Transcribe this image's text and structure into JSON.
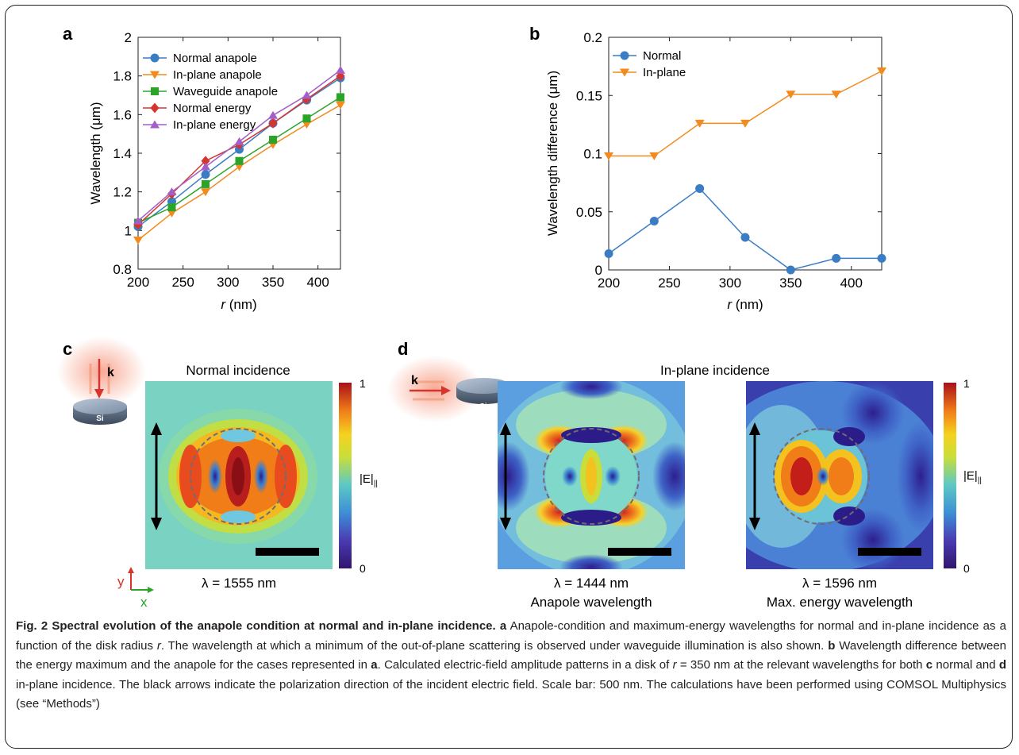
{
  "colors": {
    "normal_anapole": "#3b7dc4",
    "inplane_anapole": "#f28a1e",
    "waveguide_anapole": "#2aa52a",
    "normal_energy": "#d6352e",
    "inplane_energy": "#a35ec7",
    "frame": "#231f20"
  },
  "panels": {
    "a": "a",
    "b": "b",
    "c": "c",
    "d": "d"
  },
  "chart_data": [
    {
      "type": "line",
      "panel": "a",
      "xlabel_var": "r",
      "xlabel_unit": "(nm)",
      "ylabel": "Wavelength (μm)",
      "xlim": [
        200,
        425
      ],
      "ylim": [
        0.8,
        2
      ],
      "xticks": [
        200,
        250,
        300,
        350,
        400
      ],
      "yticks": [
        0.8,
        1,
        1.2,
        1.4,
        1.6,
        1.8,
        2
      ],
      "ytick_labels": [
        "0.8",
        "1",
        "1.2",
        "1.4",
        "1.6",
        "1.8",
        "2"
      ],
      "x": [
        200,
        237.5,
        275,
        312.5,
        350,
        387.5,
        425
      ],
      "legend_position": "top-left",
      "series": [
        {
          "name": "Normal anapole",
          "color": "#3b7dc4",
          "marker": "circle",
          "values": [
            1.02,
            1.15,
            1.29,
            1.42,
            1.555,
            1.675,
            1.79
          ]
        },
        {
          "name": "In-plane anapole",
          "color": "#f28a1e",
          "marker": "triangle-down",
          "values": [
            0.95,
            1.09,
            1.2,
            1.33,
            1.444,
            1.55,
            1.65
          ]
        },
        {
          "name": "Waveguide anapole",
          "color": "#2aa52a",
          "marker": "square",
          "values": [
            1.04,
            1.12,
            1.24,
            1.36,
            1.47,
            1.58,
            1.69
          ]
        },
        {
          "name": "Normal energy",
          "color": "#d6352e",
          "marker": "diamond",
          "values": [
            1.03,
            1.19,
            1.36,
            1.445,
            1.555,
            1.68,
            1.8
          ]
        },
        {
          "name": "In-plane energy",
          "color": "#a35ec7",
          "marker": "triangle-up",
          "values": [
            1.05,
            1.2,
            1.33,
            1.46,
            1.596,
            1.7,
            1.83
          ]
        }
      ]
    },
    {
      "type": "line",
      "panel": "b",
      "xlabel_var": "r",
      "xlabel_unit": "(nm)",
      "ylabel": "Wavelength difference (μm)",
      "xlim": [
        200,
        425
      ],
      "ylim": [
        0,
        0.2
      ],
      "xticks": [
        200,
        250,
        300,
        350,
        400
      ],
      "yticks": [
        0,
        0.05,
        0.1,
        0.15,
        0.2
      ],
      "ytick_labels": [
        "0",
        "0.05",
        "0.1",
        "0.15",
        "0.2"
      ],
      "x": [
        200,
        237.5,
        275,
        312.5,
        350,
        387.5,
        425
      ],
      "legend_position": "top-left",
      "series": [
        {
          "name": "Normal",
          "color": "#3b7dc4",
          "marker": "circle",
          "values": [
            0.014,
            0.042,
            0.07,
            0.028,
            0.0,
            0.01,
            0.01
          ]
        },
        {
          "name": "In-plane",
          "color": "#f28a1e",
          "marker": "triangle-down",
          "values": [
            0.098,
            0.098,
            0.126,
            0.126,
            0.151,
            0.151,
            0.171
          ]
        }
      ]
    }
  ],
  "field_maps": {
    "c": {
      "title": "Normal incidence",
      "lambda_label": "λ = 1555 nm",
      "disk_label": "Si",
      "k_label": "k",
      "colorbar_max": "1",
      "colorbar_min": "0",
      "colorbar_label": "|E|",
      "colorbar_subscript": "||"
    },
    "d": {
      "title": "In-plane incidence",
      "disk_label": "Si",
      "k_label": "k",
      "left_lambda": "λ = 1444 nm",
      "left_sublabel": "Anapole wavelength",
      "right_lambda": "λ = 1596 nm",
      "right_sublabel": "Max. energy wavelength",
      "colorbar_max": "1",
      "colorbar_min": "0",
      "colorbar_label": "|E|",
      "colorbar_subscript": "||"
    },
    "axes": {
      "y": "y",
      "x": "x"
    }
  },
  "caption": {
    "title": "Fig. 2 Spectral evolution of the anapole condition at normal and in-plane incidence.",
    "a_label": "a",
    "a_text": "Anapole-condition and maximum-energy wavelengths for normal and in-plane incidence as a function of the disk radius",
    "r_var": "r",
    "a_text2": ". The wavelength at which a minimum of the out-of-plane scattering is observed under waveguide illumination is also shown.",
    "b_label": "b",
    "b_text": "Wavelength difference between the energy maximum and the anapole for the cases represented in",
    "a_ref": "a",
    "b_text2": ". Calculated electric-field amplitude patterns in a disk of",
    "r_eq": "r",
    "b_text3": "= 350 nm at the relevant wavelengths for both",
    "c_ref": "c",
    "c_text": "normal and",
    "d_ref": "d",
    "d_text": "in-plane incidence. The black arrows indicate the polarization direction of the incident electric field. Scale bar: 500 nm. The calculations have been performed using COMSOL Multiphysics (see “Methods”)"
  }
}
